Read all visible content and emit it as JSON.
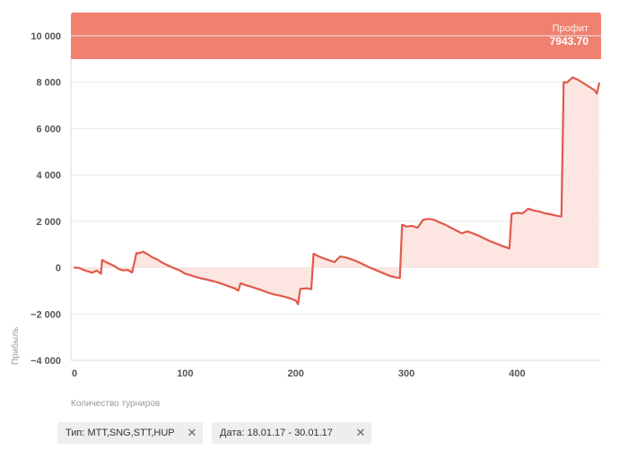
{
  "profit": {
    "label": "Профит",
    "value": "7943.70"
  },
  "filters": [
    {
      "label": "Тип: MTT,SNG,STT,HUP",
      "close": "✕"
    },
    {
      "label": "Дата: 18.01.17 - 30.01.17",
      "close": "✕"
    }
  ],
  "colors": {
    "line": "#e05a4a",
    "area_fill": "#fde6e2",
    "banner": "#f08070",
    "grid": "#e8e8e8"
  },
  "chart_data": {
    "type": "area",
    "title": "",
    "xlabel": "Количество турниров",
    "ylabel": "Прибыль",
    "xlim": [
      0,
      480
    ],
    "ylim": [
      -4000,
      11000
    ],
    "x_ticks": [
      0,
      100,
      200,
      300,
      400
    ],
    "x_tick_labels": [
      "0",
      "100",
      "200",
      "300",
      "400"
    ],
    "y_ticks": [
      -4000,
      -2000,
      0,
      2000,
      4000,
      6000,
      8000,
      10000
    ],
    "y_tick_labels": [
      "−4 000",
      "−2 000",
      "0",
      "2 000",
      "4 000",
      "6 000",
      "8 000",
      "10 000"
    ],
    "grid": "horizontal",
    "series": [
      {
        "x": [
          0,
          4,
          8,
          12,
          16,
          20,
          24,
          25,
          28,
          32,
          36,
          40,
          44,
          48,
          52,
          56,
          58,
          62,
          66,
          70,
          75,
          80,
          85,
          90,
          95,
          100,
          105,
          110,
          115,
          120,
          125,
          130,
          135,
          140,
          145,
          148,
          150,
          155,
          160,
          165,
          170,
          175,
          180,
          185,
          190,
          195,
          200,
          202,
          204,
          210,
          214,
          216,
          220,
          225,
          230,
          235,
          240,
          245,
          250,
          255,
          260,
          265,
          270,
          275,
          280,
          285,
          290,
          294,
          296,
          300,
          305,
          310,
          315,
          320,
          325,
          330,
          335,
          340,
          345,
          350,
          355,
          360,
          365,
          370,
          375,
          380,
          385,
          390,
          393,
          395,
          400,
          405,
          410,
          415,
          420,
          425,
          430,
          435,
          440,
          442,
          445,
          450,
          455,
          460,
          465,
          470,
          472,
          474
        ],
        "y": [
          0,
          -10,
          -100,
          -160,
          -220,
          -130,
          -260,
          330,
          250,
          160,
          70,
          -60,
          -120,
          -100,
          -210,
          630,
          620,
          680,
          580,
          450,
          350,
          200,
          80,
          -20,
          -120,
          -260,
          -330,
          -410,
          -470,
          -520,
          -580,
          -650,
          -730,
          -820,
          -900,
          -1000,
          -680,
          -760,
          -830,
          -910,
          -990,
          -1080,
          -1150,
          -1200,
          -1260,
          -1330,
          -1420,
          -1580,
          -920,
          -890,
          -930,
          600,
          500,
          400,
          320,
          240,
          480,
          440,
          360,
          270,
          160,
          40,
          -60,
          -160,
          -260,
          -360,
          -420,
          -450,
          1850,
          1770,
          1800,
          1720,
          2060,
          2100,
          2060,
          1950,
          1850,
          1720,
          1600,
          1480,
          1560,
          1480,
          1380,
          1260,
          1150,
          1060,
          960,
          880,
          820,
          2320,
          2360,
          2340,
          2540,
          2460,
          2420,
          2340,
          2300,
          2240,
          2200,
          8000,
          7980,
          8200,
          8100,
          7950,
          7800,
          7650,
          7500,
          7943.7
        ]
      }
    ]
  }
}
